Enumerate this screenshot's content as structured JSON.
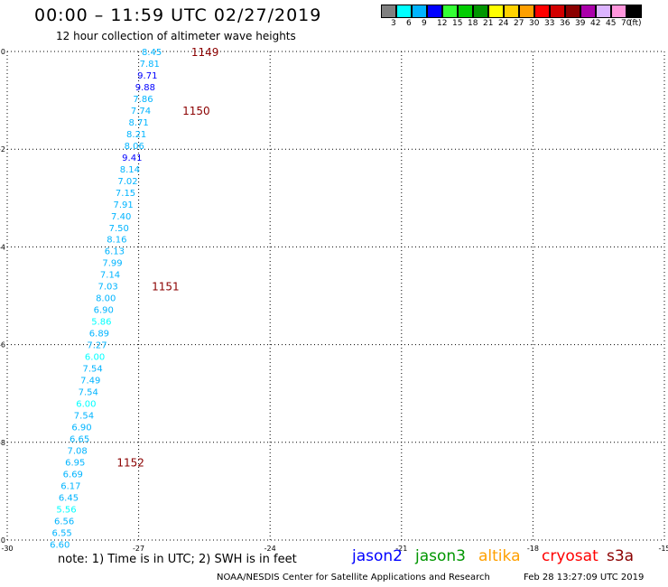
{
  "title": "00:00 – 11:59 UTC 02/27/2019",
  "subtitle": "12 hour collection of altimeter wave heights",
  "legend": {
    "items": [
      {
        "label": "3",
        "color": "#808080"
      },
      {
        "label": "6",
        "color": "#00ffff"
      },
      {
        "label": "9",
        "color": "#00b4ff"
      },
      {
        "label": "12",
        "color": "#0000ff"
      },
      {
        "label": "15",
        "color": "#33ff33"
      },
      {
        "label": "18",
        "color": "#00cc00"
      },
      {
        "label": "21",
        "color": "#009600"
      },
      {
        "label": "24",
        "color": "#ffff00"
      },
      {
        "label": "27",
        "color": "#ffd200"
      },
      {
        "label": "30",
        "color": "#ffa000"
      },
      {
        "label": "33",
        "color": "#ff0000"
      },
      {
        "label": "36",
        "color": "#d20000"
      },
      {
        "label": "39",
        "color": "#8b0000"
      },
      {
        "label": "42",
        "color": "#aa00aa"
      },
      {
        "label": "45",
        "color": "#dcb4ff"
      },
      {
        "label": "70",
        "color": "#ff96dc"
      },
      {
        "label": "",
        "color": "#000000"
      }
    ],
    "unit": "(ft)"
  },
  "chart_data": {
    "type": "scatter",
    "xlim": [
      -30,
      -15
    ],
    "ylim": [
      -10,
      0
    ],
    "xticks": [
      "-30",
      "-27",
      "-24",
      "-21",
      "-18",
      "-15"
    ],
    "yticks": [
      "0",
      "-2",
      "-4",
      "-6",
      "-8",
      "-10"
    ],
    "grid": true,
    "points": [
      {
        "x": -26.7,
        "y": 0.0,
        "v": "8.45",
        "c": "#00b4ff"
      },
      {
        "x": -26.75,
        "y": -0.24,
        "v": "7.81",
        "c": "#00b4ff"
      },
      {
        "x": -26.8,
        "y": -0.48,
        "v": "9.71",
        "c": "#0000ff"
      },
      {
        "x": -26.85,
        "y": -0.72,
        "v": "9.88",
        "c": "#0000ff"
      },
      {
        "x": -26.9,
        "y": -0.96,
        "v": "7.86",
        "c": "#00b4ff"
      },
      {
        "x": -26.95,
        "y": -1.2,
        "v": "7.74",
        "c": "#00b4ff"
      },
      {
        "x": -27.0,
        "y": -1.44,
        "v": "8.71",
        "c": "#00b4ff"
      },
      {
        "x": -27.05,
        "y": -1.68,
        "v": "8.21",
        "c": "#00b4ff"
      },
      {
        "x": -27.1,
        "y": -1.92,
        "v": "8.06",
        "c": "#00b4ff"
      },
      {
        "x": -27.15,
        "y": -2.16,
        "v": "9.41",
        "c": "#0000ff"
      },
      {
        "x": -27.2,
        "y": -2.4,
        "v": "8.14",
        "c": "#00b4ff"
      },
      {
        "x": -27.25,
        "y": -2.64,
        "v": "7.02",
        "c": "#00b4ff"
      },
      {
        "x": -27.3,
        "y": -2.88,
        "v": "7.15",
        "c": "#00b4ff"
      },
      {
        "x": -27.35,
        "y": -3.12,
        "v": "7.91",
        "c": "#00b4ff"
      },
      {
        "x": -27.4,
        "y": -3.36,
        "v": "7.40",
        "c": "#00b4ff"
      },
      {
        "x": -27.45,
        "y": -3.6,
        "v": "7.50",
        "c": "#00b4ff"
      },
      {
        "x": -27.5,
        "y": -3.84,
        "v": "8.16",
        "c": "#00b4ff"
      },
      {
        "x": -27.55,
        "y": -4.08,
        "v": "6.13",
        "c": "#00b4ff"
      },
      {
        "x": -27.6,
        "y": -4.32,
        "v": "7.99",
        "c": "#00b4ff"
      },
      {
        "x": -27.65,
        "y": -4.56,
        "v": "7.14",
        "c": "#00b4ff"
      },
      {
        "x": -27.7,
        "y": -4.8,
        "v": "7.03",
        "c": "#00b4ff"
      },
      {
        "x": -27.75,
        "y": -5.04,
        "v": "8.00",
        "c": "#00b4ff"
      },
      {
        "x": -27.8,
        "y": -5.28,
        "v": "6.90",
        "c": "#00b4ff"
      },
      {
        "x": -27.85,
        "y": -5.52,
        "v": "5.86",
        "c": "#00ffff"
      },
      {
        "x": -27.9,
        "y": -5.76,
        "v": "6.89",
        "c": "#00b4ff"
      },
      {
        "x": -27.95,
        "y": -6.0,
        "v": "7.27",
        "c": "#00b4ff"
      },
      {
        "x": -28.0,
        "y": -6.24,
        "v": "6.00",
        "c": "#00ffff"
      },
      {
        "x": -28.05,
        "y": -6.48,
        "v": "7.54",
        "c": "#00b4ff"
      },
      {
        "x": -28.1,
        "y": -6.72,
        "v": "7.49",
        "c": "#00b4ff"
      },
      {
        "x": -28.15,
        "y": -6.96,
        "v": "7.54",
        "c": "#00b4ff"
      },
      {
        "x": -28.2,
        "y": -7.2,
        "v": "6.00",
        "c": "#00ffff"
      },
      {
        "x": -28.25,
        "y": -7.44,
        "v": "7.54",
        "c": "#00b4ff"
      },
      {
        "x": -28.3,
        "y": -7.68,
        "v": "6.90",
        "c": "#00b4ff"
      },
      {
        "x": -28.35,
        "y": -7.92,
        "v": "6.65",
        "c": "#00b4ff"
      },
      {
        "x": -28.4,
        "y": -8.16,
        "v": "7.08",
        "c": "#00b4ff"
      },
      {
        "x": -28.45,
        "y": -8.4,
        "v": "6.95",
        "c": "#00b4ff"
      },
      {
        "x": -28.5,
        "y": -8.64,
        "v": "6.69",
        "c": "#00b4ff"
      },
      {
        "x": -28.55,
        "y": -8.88,
        "v": "6.17",
        "c": "#00b4ff"
      },
      {
        "x": -28.6,
        "y": -9.12,
        "v": "6.45",
        "c": "#00b4ff"
      },
      {
        "x": -28.65,
        "y": -9.36,
        "v": "5.56",
        "c": "#00ffff"
      },
      {
        "x": -28.7,
        "y": -9.6,
        "v": "6.56",
        "c": "#00b4ff"
      },
      {
        "x": -28.75,
        "y": -9.84,
        "v": "6.55",
        "c": "#00b4ff"
      },
      {
        "x": -28.8,
        "y": -10.08,
        "v": "6.60",
        "c": "#00b4ff"
      }
    ],
    "time_labels": [
      {
        "x": -25.8,
        "y": 0.0,
        "text": "1149"
      },
      {
        "x": -26.0,
        "y": -1.2,
        "text": "1150"
      },
      {
        "x": -26.7,
        "y": -4.8,
        "text": "1151"
      },
      {
        "x": -27.5,
        "y": -8.4,
        "text": "1152"
      }
    ],
    "time_label_color": "#8b0000"
  },
  "note": "note:  1) Time is in UTC;  2) SWH is in feet",
  "satellites": [
    {
      "name": "jason2",
      "color": "#0000ff"
    },
    {
      "name": "jason3",
      "color": "#009600"
    },
    {
      "name": "altika",
      "color": "#ffa000"
    },
    {
      "name": "cryosat",
      "color": "#ff0000"
    },
    {
      "name": "s3a",
      "color": "#8b0000"
    }
  ],
  "credit": "NOAA/NESDIS Center for Satellite Applications and Research",
  "timestamp": "Feb 28 13:27:09 UTC 2019"
}
